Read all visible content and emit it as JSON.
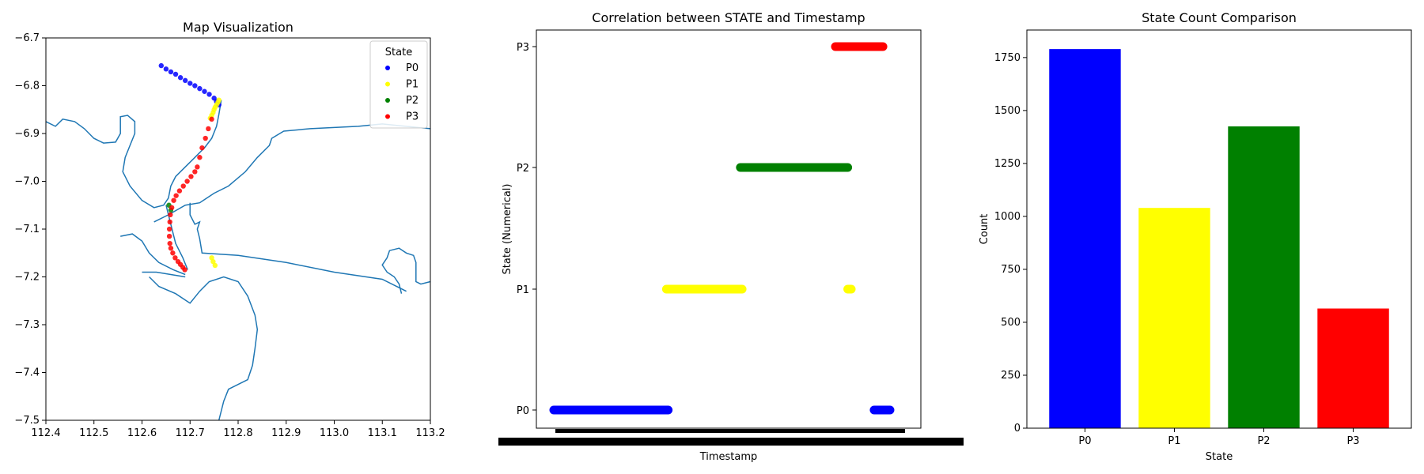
{
  "chart_data": [
    {
      "type": "scatter",
      "title": "Map Visualization",
      "xlim": [
        112.4,
        113.2
      ],
      "ylim": [
        -7.5,
        -6.7
      ],
      "x_ticks": [
        "112.4",
        "112.5",
        "112.6",
        "112.7",
        "112.8",
        "112.9",
        "113.0",
        "113.1",
        "113.2"
      ],
      "y_ticks": [
        "−6.7",
        "−6.8",
        "−6.9",
        "−7.0",
        "−7.1",
        "−7.2",
        "−7.3",
        "−7.4",
        "−7.5"
      ],
      "legend": {
        "title": "State",
        "position": "top-right",
        "entries": [
          "P0",
          "P1",
          "P2",
          "P3"
        ]
      },
      "boundary_color": "#1f77b4",
      "boundaries": [
        [
          [
            112.4,
            -6.875
          ],
          [
            112.42,
            -6.885
          ],
          [
            112.435,
            -6.87
          ],
          [
            112.46,
            -6.875
          ],
          [
            112.48,
            -6.89
          ],
          [
            112.5,
            -6.91
          ],
          [
            112.52,
            -6.92
          ],
          [
            112.545,
            -6.918
          ],
          [
            112.555,
            -6.9
          ],
          [
            112.555,
            -6.865
          ],
          [
            112.57,
            -6.862
          ],
          [
            112.585,
            -6.875
          ],
          [
            112.585,
            -6.9
          ],
          [
            112.575,
            -6.925
          ],
          [
            112.565,
            -6.95
          ],
          [
            112.56,
            -6.98
          ],
          [
            112.575,
            -7.01
          ],
          [
            112.6,
            -7.04
          ],
          [
            112.625,
            -7.055
          ],
          [
            112.645,
            -7.05
          ],
          [
            112.655,
            -7.035
          ],
          [
            112.66,
            -7.01
          ],
          [
            112.67,
            -6.99
          ],
          [
            112.69,
            -6.97
          ],
          [
            112.71,
            -6.95
          ],
          [
            112.73,
            -6.93
          ],
          [
            112.745,
            -6.91
          ],
          [
            112.755,
            -6.885
          ],
          [
            112.76,
            -6.86
          ],
          [
            112.765,
            -6.83
          ]
        ],
        [
          [
            112.625,
            -7.085
          ],
          [
            112.655,
            -7.07
          ],
          [
            112.69,
            -7.05
          ],
          [
            112.72,
            -7.045
          ],
          [
            112.75,
            -7.025
          ],
          [
            112.78,
            -7.01
          ],
          [
            112.815,
            -6.98
          ],
          [
            112.84,
            -6.95
          ],
          [
            112.865,
            -6.925
          ],
          [
            112.87,
            -6.91
          ],
          [
            112.895,
            -6.895
          ],
          [
            112.95,
            -6.89
          ],
          [
            113.05,
            -6.885
          ],
          [
            113.1,
            -6.88
          ],
          [
            113.2,
            -6.89
          ]
        ],
        [
          [
            112.65,
            -7.05
          ],
          [
            112.66,
            -7.09
          ],
          [
            112.67,
            -7.13
          ],
          [
            112.685,
            -7.16
          ],
          [
            112.695,
            -7.185
          ]
        ],
        [
          [
            112.7,
            -7.045
          ],
          [
            112.7,
            -7.07
          ],
          [
            112.71,
            -7.09
          ],
          [
            112.72,
            -7.085
          ],
          [
            112.715,
            -7.1
          ],
          [
            112.72,
            -7.12
          ],
          [
            112.725,
            -7.15
          ],
          [
            112.8,
            -7.155
          ],
          [
            112.9,
            -7.17
          ],
          [
            113.0,
            -7.19
          ],
          [
            113.1,
            -7.205
          ],
          [
            113.15,
            -7.23
          ]
        ],
        [
          [
            112.555,
            -7.115
          ],
          [
            112.58,
            -7.11
          ],
          [
            112.6,
            -7.125
          ],
          [
            112.615,
            -7.15
          ],
          [
            112.635,
            -7.17
          ],
          [
            112.665,
            -7.185
          ],
          [
            112.69,
            -7.195
          ]
        ],
        [
          [
            112.6,
            -7.19
          ],
          [
            112.63,
            -7.19
          ],
          [
            112.66,
            -7.195
          ],
          [
            112.69,
            -7.2
          ]
        ],
        [
          [
            112.615,
            -7.2
          ],
          [
            112.635,
            -7.22
          ],
          [
            112.67,
            -7.235
          ],
          [
            112.7,
            -7.255
          ],
          [
            112.72,
            -7.23
          ],
          [
            112.74,
            -7.21
          ],
          [
            112.77,
            -7.2
          ],
          [
            112.8,
            -7.21
          ],
          [
            112.82,
            -7.24
          ],
          [
            112.835,
            -7.28
          ],
          [
            112.84,
            -7.31
          ],
          [
            112.835,
            -7.35
          ],
          [
            112.83,
            -7.385
          ],
          [
            112.82,
            -7.415
          ],
          [
            112.78,
            -7.435
          ],
          [
            112.77,
            -7.46
          ],
          [
            112.76,
            -7.5
          ]
        ],
        [
          [
            113.14,
            -7.235
          ],
          [
            113.135,
            -7.215
          ],
          [
            113.125,
            -7.2
          ],
          [
            113.11,
            -7.19
          ],
          [
            113.1,
            -7.175
          ],
          [
            113.11,
            -7.16
          ],
          [
            113.115,
            -7.145
          ],
          [
            113.135,
            -7.14
          ],
          [
            113.15,
            -7.15
          ],
          [
            113.165,
            -7.155
          ],
          [
            113.17,
            -7.17
          ],
          [
            113.17,
            -7.21
          ],
          [
            113.18,
            -7.215
          ],
          [
            113.2,
            -7.21
          ]
        ]
      ],
      "series": [
        {
          "name": "P0",
          "color": "#0000ff",
          "x": [
            112.64,
            112.65,
            112.66,
            112.67,
            112.68,
            112.69,
            112.7,
            112.71,
            112.72,
            112.73,
            112.74,
            112.75,
            112.755,
            112.76
          ],
          "y": [
            -6.758,
            -6.765,
            -6.771,
            -6.776,
            -6.783,
            -6.789,
            -6.795,
            -6.8,
            -6.806,
            -6.812,
            -6.818,
            -6.826,
            -6.833,
            -6.84
          ]
        },
        {
          "name": "P1",
          "color": "#ffff00",
          "x": [
            112.76,
            112.758,
            112.755,
            112.752,
            112.75,
            112.748,
            112.745,
            112.742,
            112.745,
            112.748,
            112.752
          ],
          "y": [
            -6.83,
            -6.835,
            -6.84,
            -6.845,
            -6.85,
            -6.856,
            -6.862,
            -6.868,
            -7.16,
            -7.168,
            -7.176
          ]
        },
        {
          "name": "P2",
          "color": "#008000",
          "x": [
            112.656,
            112.66
          ],
          "y": [
            -7.05,
            -7.06
          ]
        },
        {
          "name": "P3",
          "color": "#ff0000",
          "x": [
            112.745,
            112.738,
            112.732,
            112.725,
            112.72,
            112.715,
            112.71,
            112.702,
            112.694,
            112.686,
            112.678,
            112.671,
            112.666,
            112.662,
            112.659,
            112.658,
            112.657,
            112.657,
            112.658,
            112.66,
            112.664,
            112.669,
            112.675,
            112.68,
            112.685,
            112.689
          ],
          "y": [
            -6.87,
            -6.89,
            -6.91,
            -6.93,
            -6.95,
            -6.97,
            -6.98,
            -6.99,
            -7.0,
            -7.01,
            -7.02,
            -7.03,
            -7.04,
            -7.055,
            -7.07,
            -7.085,
            -7.1,
            -7.115,
            -7.13,
            -7.14,
            -7.15,
            -7.16,
            -7.168,
            -7.174,
            -7.18,
            -7.185
          ]
        }
      ]
    },
    {
      "type": "scatter",
      "title": "Correlation between STATE and Timestamp",
      "xlabel": "Timestamp",
      "ylabel": "State (Numerical)",
      "y_categories": [
        "P0",
        "P1",
        "P2",
        "P3"
      ],
      "note": "x values expressed as fraction of the timestamp range (tick labels overlap and are unreadable)",
      "series": [
        {
          "name": "P0",
          "color": "#0000ff",
          "y": 0,
          "x_ranges": [
            [
              0.0,
              0.325
            ],
            [
              0.91,
              0.955
            ]
          ]
        },
        {
          "name": "P1",
          "color": "#ffff00",
          "y": 1,
          "x_ranges": [
            [
              0.32,
              0.535
            ],
            [
              0.835,
              0.845
            ]
          ]
        },
        {
          "name": "P2",
          "color": "#008000",
          "y": 2,
          "x_ranges": [
            [
              0.53,
              0.835
            ]
          ]
        },
        {
          "name": "P3",
          "color": "#ff0000",
          "y": 3,
          "x_ranges": [
            [
              0.8,
              0.935
            ]
          ]
        }
      ]
    },
    {
      "type": "bar",
      "title": "State Count Comparison",
      "xlabel": "State",
      "ylabel": "Count",
      "categories": [
        "P0",
        "P1",
        "P2",
        "P3"
      ],
      "values": [
        1790,
        1040,
        1425,
        565
      ],
      "colors": [
        "#0000ff",
        "#ffff00",
        "#008000",
        "#ff0000"
      ],
      "ylim": [
        0,
        1880
      ],
      "y_ticks": [
        0,
        250,
        500,
        750,
        1000,
        1250,
        1500,
        1750
      ]
    }
  ]
}
